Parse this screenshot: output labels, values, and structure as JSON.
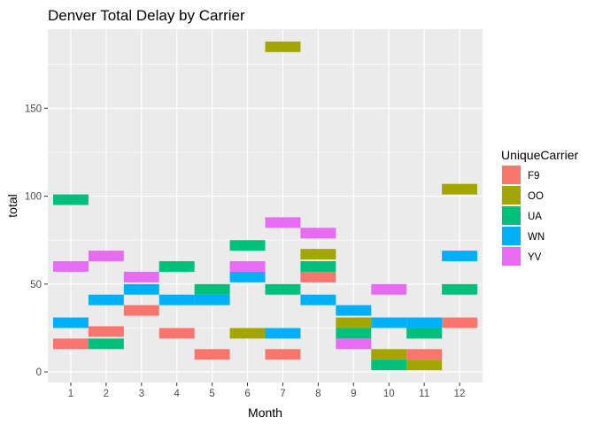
{
  "chart_data": {
    "type": "heatmap",
    "title": "Denver Total Delay by Carrier",
    "xlabel": "Month",
    "ylabel": "total",
    "x_ticks": [
      "1",
      "2",
      "3",
      "4",
      "5",
      "6",
      "7",
      "8",
      "9",
      "10",
      "11",
      "12"
    ],
    "y_ticks": [
      "0",
      "50",
      "100",
      "150"
    ],
    "xlim": [
      0.35,
      12.65
    ],
    "ylim": [
      -6,
      195
    ],
    "grid": true,
    "legend_title": "UniqueCarrier",
    "legend_position": "right",
    "tile_height": 6,
    "colors": {
      "F9": "#F8766D",
      "OO": "#A3A500",
      "UA": "#00BF7D",
      "WN": "#00B0F6",
      "YV": "#E76BF3"
    },
    "series": [
      {
        "name": "F9",
        "points": [
          [
            1,
            16
          ],
          [
            2,
            23
          ],
          [
            3,
            35
          ],
          [
            4,
            22
          ],
          [
            5,
            10
          ],
          [
            7,
            10
          ],
          [
            8,
            54
          ],
          [
            11,
            10
          ],
          [
            12,
            28
          ]
        ]
      },
      {
        "name": "OO",
        "points": [
          [
            6,
            22
          ],
          [
            7,
            185
          ],
          [
            8,
            67
          ],
          [
            9,
            28
          ],
          [
            10,
            10
          ],
          [
            11,
            4
          ],
          [
            12,
            104
          ]
        ]
      },
      {
        "name": "UA",
        "points": [
          [
            1,
            98
          ],
          [
            2,
            16
          ],
          [
            4,
            60
          ],
          [
            5,
            47
          ],
          [
            6,
            72
          ],
          [
            7,
            47
          ],
          [
            8,
            60
          ],
          [
            9,
            22
          ],
          [
            10,
            4
          ],
          [
            11,
            22
          ],
          [
            12,
            47
          ]
        ]
      },
      {
        "name": "WN",
        "points": [
          [
            1,
            28
          ],
          [
            2,
            41
          ],
          [
            3,
            47
          ],
          [
            4,
            41
          ],
          [
            5,
            41
          ],
          [
            6,
            54
          ],
          [
            7,
            22
          ],
          [
            8,
            41
          ],
          [
            9,
            35
          ],
          [
            10,
            28
          ],
          [
            11,
            28
          ],
          [
            12,
            66
          ]
        ]
      },
      {
        "name": "YV",
        "points": [
          [
            1,
            60
          ],
          [
            2,
            66
          ],
          [
            3,
            54
          ],
          [
            6,
            60
          ],
          [
            7,
            85
          ],
          [
            8,
            79
          ],
          [
            9,
            16
          ],
          [
            10,
            47
          ]
        ]
      }
    ]
  }
}
